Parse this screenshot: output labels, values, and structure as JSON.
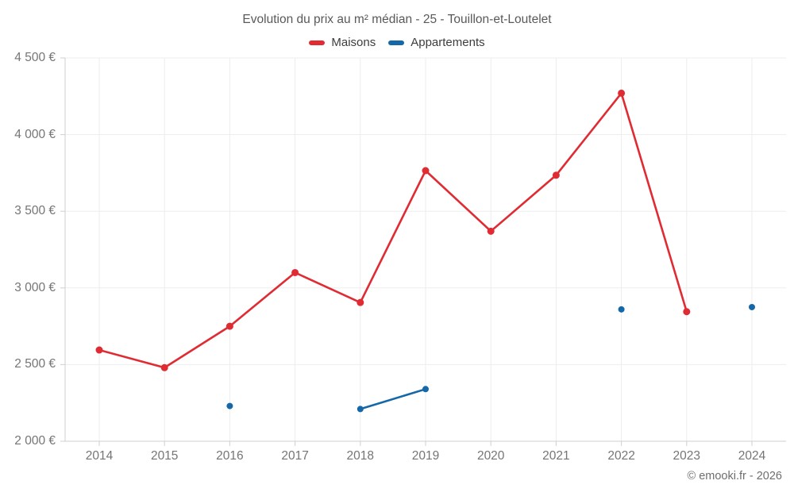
{
  "chart_data": {
    "type": "line",
    "title": "Evolution du prix au m² médian - 25 - Touillon-et-Loutelet",
    "footer": "© emooki.fr - 2026",
    "categories": [
      "2014",
      "2015",
      "2016",
      "2017",
      "2018",
      "2019",
      "2020",
      "2021",
      "2022",
      "2023",
      "2024"
    ],
    "series": [
      {
        "name": "Maisons",
        "color": "#e02b33",
        "marker_radius": 4.5,
        "line_width": 2.6,
        "values": [
          2595,
          2480,
          2750,
          3100,
          2905,
          3765,
          3370,
          3735,
          4270,
          2845,
          null
        ]
      },
      {
        "name": "Appartements",
        "color": "#1568a7",
        "marker_radius": 4,
        "line_width": 2.6,
        "values": [
          null,
          null,
          2230,
          null,
          2210,
          2340,
          null,
          null,
          2860,
          null,
          2875
        ]
      }
    ],
    "ylim": [
      2000,
      4500
    ],
    "yticks": [
      {
        "value": 4500,
        "label": "4 500 €"
      },
      {
        "value": 4000,
        "label": "4 000 €"
      },
      {
        "value": 3500,
        "label": "3 500 €"
      },
      {
        "value": 3000,
        "label": "3 000 €"
      },
      {
        "value": 2500,
        "label": "2 500 €"
      },
      {
        "value": 2000,
        "label": "2 000 €"
      }
    ],
    "grid": true,
    "legend_position": "top",
    "connect_rule": "consecutive-years-only",
    "colors": {
      "grid": "#ededed",
      "axis": "#cfcfcf",
      "title_text": "#595959",
      "axis_text": "#757575",
      "footer_text": "#6e6e6e"
    }
  }
}
